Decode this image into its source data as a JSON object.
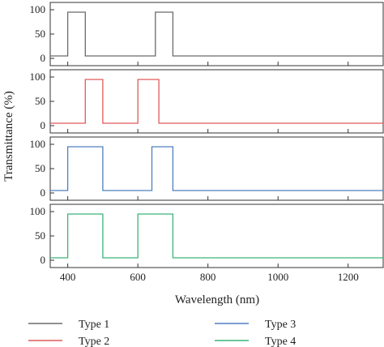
{
  "chart_data": {
    "type": "line",
    "xlabel": "Wavelength (nm)",
    "ylabel": "Transmittance (%)",
    "xlim": [
      350,
      1300
    ],
    "ylim": [
      -5,
      105
    ],
    "x_ticks": [
      400,
      600,
      800,
      1000,
      1200
    ],
    "y_ticks": [
      0,
      50,
      100
    ],
    "grid": false,
    "legend_position": "bottom",
    "panels": [
      {
        "name": "Type 1",
        "color": "#6b6b6b",
        "points": [
          [
            350,
            5
          ],
          [
            400,
            5
          ],
          [
            400,
            95
          ],
          [
            450,
            95
          ],
          [
            450,
            5
          ],
          [
            650,
            5
          ],
          [
            650,
            95
          ],
          [
            700,
            95
          ],
          [
            700,
            5
          ],
          [
            1300,
            5
          ]
        ]
      },
      {
        "name": "Type 2",
        "color": "#e05a5a",
        "points": [
          [
            350,
            5
          ],
          [
            450,
            5
          ],
          [
            450,
            95
          ],
          [
            500,
            95
          ],
          [
            500,
            5
          ],
          [
            600,
            5
          ],
          [
            600,
            95
          ],
          [
            660,
            95
          ],
          [
            660,
            5
          ],
          [
            1300,
            5
          ]
        ]
      },
      {
        "name": "Type 3",
        "color": "#4f7fc0",
        "points": [
          [
            350,
            5
          ],
          [
            400,
            5
          ],
          [
            400,
            95
          ],
          [
            500,
            95
          ],
          [
            500,
            5
          ],
          [
            640,
            5
          ],
          [
            640,
            95
          ],
          [
            700,
            95
          ],
          [
            700,
            5
          ],
          [
            1300,
            5
          ]
        ]
      },
      {
        "name": "Type 4",
        "color": "#3cb47a",
        "points": [
          [
            350,
            5
          ],
          [
            400,
            5
          ],
          [
            400,
            95
          ],
          [
            500,
            95
          ],
          [
            500,
            5
          ],
          [
            600,
            5
          ],
          [
            600,
            95
          ],
          [
            700,
            95
          ],
          [
            700,
            5
          ],
          [
            1300,
            5
          ]
        ]
      }
    ]
  }
}
